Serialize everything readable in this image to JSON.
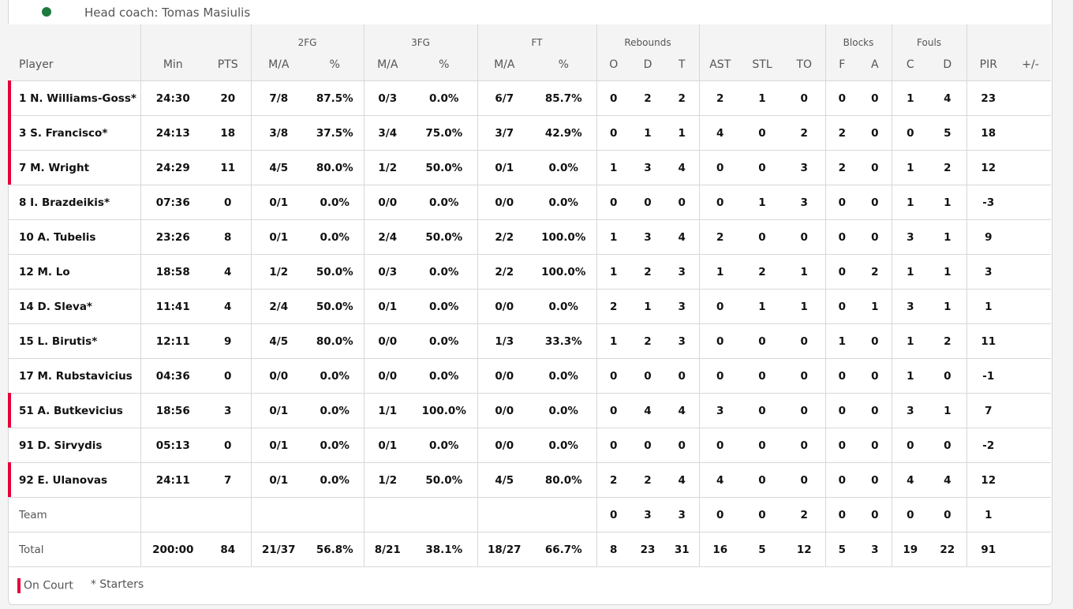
{
  "header": {
    "coach": "Head coach: Tomas Masiulis"
  },
  "columns": {
    "player": "Player",
    "min": "Min",
    "pts": "PTS",
    "fg2": "2FG",
    "fg3": "3FG",
    "ft": "FT",
    "reb": "Rebounds",
    "blocks": "Blocks",
    "fouls": "Fouls",
    "ma": "M/A",
    "pct": "%",
    "o": "O",
    "d": "D",
    "t": "T",
    "ast": "AST",
    "stl": "STL",
    "to": "TO",
    "f": "F",
    "a": "A",
    "c": "C",
    "fd": "D",
    "pir": "PIR",
    "pm": "+/-"
  },
  "rows": [
    {
      "player": "1 N. Williams-Goss*",
      "on": true,
      "v": [
        "24:30",
        "20",
        "7/8",
        "87.5%",
        "0/3",
        "0.0%",
        "6/7",
        "85.7%",
        "0",
        "2",
        "2",
        "2",
        "1",
        "0",
        "0",
        "0",
        "1",
        "4",
        "23",
        ""
      ]
    },
    {
      "player": "3 S. Francisco*",
      "on": true,
      "v": [
        "24:13",
        "18",
        "3/8",
        "37.5%",
        "3/4",
        "75.0%",
        "3/7",
        "42.9%",
        "0",
        "1",
        "1",
        "4",
        "0",
        "2",
        "2",
        "0",
        "0",
        "5",
        "18",
        ""
      ]
    },
    {
      "player": "7 M. Wright",
      "on": true,
      "v": [
        "24:29",
        "11",
        "4/5",
        "80.0%",
        "1/2",
        "50.0%",
        "0/1",
        "0.0%",
        "1",
        "3",
        "4",
        "0",
        "0",
        "3",
        "2",
        "0",
        "1",
        "2",
        "12",
        ""
      ]
    },
    {
      "player": "8 I. Brazdeikis*",
      "on": false,
      "v": [
        "07:36",
        "0",
        "0/1",
        "0.0%",
        "0/0",
        "0.0%",
        "0/0",
        "0.0%",
        "0",
        "0",
        "0",
        "0",
        "1",
        "3",
        "0",
        "0",
        "1",
        "1",
        "-3",
        ""
      ]
    },
    {
      "player": "10 A. Tubelis",
      "on": false,
      "v": [
        "23:26",
        "8",
        "0/1",
        "0.0%",
        "2/4",
        "50.0%",
        "2/2",
        "100.0%",
        "1",
        "3",
        "4",
        "2",
        "0",
        "0",
        "0",
        "0",
        "3",
        "1",
        "9",
        ""
      ]
    },
    {
      "player": "12 M. Lo",
      "on": false,
      "v": [
        "18:58",
        "4",
        "1/2",
        "50.0%",
        "0/3",
        "0.0%",
        "2/2",
        "100.0%",
        "1",
        "2",
        "3",
        "1",
        "2",
        "1",
        "0",
        "2",
        "1",
        "1",
        "3",
        ""
      ]
    },
    {
      "player": "14 D. Sleva*",
      "on": false,
      "v": [
        "11:41",
        "4",
        "2/4",
        "50.0%",
        "0/1",
        "0.0%",
        "0/0",
        "0.0%",
        "2",
        "1",
        "3",
        "0",
        "1",
        "1",
        "0",
        "1",
        "3",
        "1",
        "1",
        ""
      ]
    },
    {
      "player": "15 L. Birutis*",
      "on": false,
      "v": [
        "12:11",
        "9",
        "4/5",
        "80.0%",
        "0/0",
        "0.0%",
        "1/3",
        "33.3%",
        "1",
        "2",
        "3",
        "0",
        "0",
        "0",
        "1",
        "0",
        "1",
        "2",
        "11",
        ""
      ]
    },
    {
      "player": "17 M. Rubstavicius",
      "on": false,
      "v": [
        "04:36",
        "0",
        "0/0",
        "0.0%",
        "0/0",
        "0.0%",
        "0/0",
        "0.0%",
        "0",
        "0",
        "0",
        "0",
        "0",
        "0",
        "0",
        "0",
        "1",
        "0",
        "-1",
        ""
      ]
    },
    {
      "player": "51 A. Butkevicius",
      "on": true,
      "v": [
        "18:56",
        "3",
        "0/1",
        "0.0%",
        "1/1",
        "100.0%",
        "0/0",
        "0.0%",
        "0",
        "4",
        "4",
        "3",
        "0",
        "0",
        "0",
        "0",
        "3",
        "1",
        "7",
        ""
      ]
    },
    {
      "player": "91 D. Sirvydis",
      "on": false,
      "v": [
        "05:13",
        "0",
        "0/1",
        "0.0%",
        "0/1",
        "0.0%",
        "0/0",
        "0.0%",
        "0",
        "0",
        "0",
        "0",
        "0",
        "0",
        "0",
        "0",
        "0",
        "0",
        "-2",
        ""
      ]
    },
    {
      "player": "92 E. Ulanovas",
      "on": true,
      "v": [
        "24:11",
        "7",
        "0/1",
        "0.0%",
        "1/2",
        "50.0%",
        "4/5",
        "80.0%",
        "2",
        "2",
        "4",
        "4",
        "0",
        "0",
        "0",
        "0",
        "4",
        "4",
        "12",
        ""
      ]
    },
    {
      "player": "Team",
      "on": false,
      "light": true,
      "v": [
        "",
        "",
        "",
        "",
        "",
        "",
        "",
        "",
        "0",
        "3",
        "3",
        "0",
        "0",
        "2",
        "0",
        "0",
        "0",
        "0",
        "1",
        ""
      ]
    },
    {
      "player": "Total",
      "on": false,
      "light": true,
      "total": true,
      "v": [
        "200:00",
        "84",
        "21/37",
        "56.8%",
        "8/21",
        "38.1%",
        "18/27",
        "66.7%",
        "8",
        "23",
        "31",
        "16",
        "5",
        "12",
        "5",
        "3",
        "19",
        "22",
        "91",
        ""
      ]
    }
  ],
  "legend": {
    "on_court": "On Court",
    "starters": "* Starters"
  },
  "colors": {
    "on_court": "#e4003a"
  }
}
